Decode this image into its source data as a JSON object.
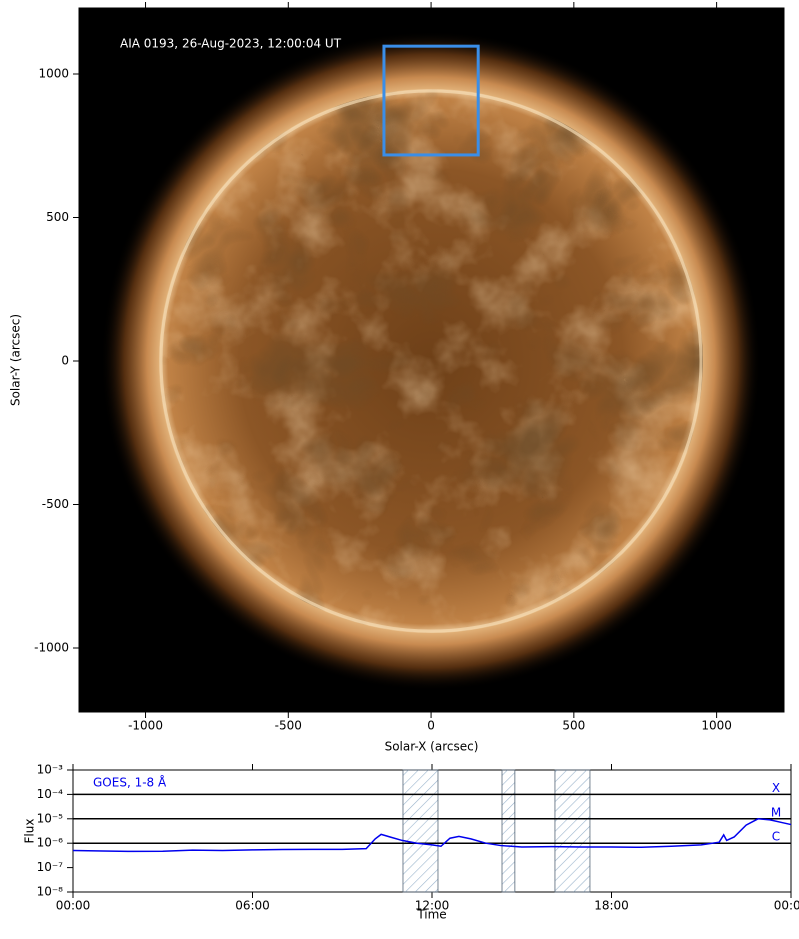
{
  "chart_data": [
    {
      "type": "image",
      "annotation": "AIA 0193, 26-Aug-2023, 12:00:04 UT",
      "xlabel": "Solar-X (arcsec)",
      "ylabel": "Solar-Y (arcsec)",
      "xlim": [
        -1233,
        1236
      ],
      "ylim": [
        -1223,
        1230
      ],
      "xticks": [
        -1000,
        -500,
        0,
        500,
        1000
      ],
      "yticks": [
        -1000,
        -500,
        0,
        500,
        1000
      ],
      "box": {
        "xlim": [
          -165,
          165
        ],
        "ylim": [
          718,
          1097
        ],
        "color": "#3a8ee8"
      }
    },
    {
      "type": "line",
      "xlabel": "Time",
      "ylabel": "Flux",
      "xlim": [
        0,
        24
      ],
      "ylim": [
        1e-08,
        0.001
      ],
      "ylog": true,
      "xticks": [
        {
          "value": 0,
          "label": "00:00"
        },
        {
          "value": 6,
          "label": "06:00"
        },
        {
          "value": 12,
          "label": "12:00"
        },
        {
          "value": 18,
          "label": "18:00"
        },
        {
          "value": 24,
          "label": "00:00"
        }
      ],
      "yticks": [
        {
          "value": 1e-08,
          "label": "10⁻⁸"
        },
        {
          "value": 1e-07,
          "label": "10⁻⁷"
        },
        {
          "value": 1e-06,
          "label": "10⁻⁶"
        },
        {
          "value": 1e-05,
          "label": "10⁻⁵"
        },
        {
          "value": 0.0001,
          "label": "10⁻⁴"
        },
        {
          "value": 0.001,
          "label": "10⁻³"
        }
      ],
      "flare_levels": [
        {
          "value": 0.0001,
          "label": "X"
        },
        {
          "value": 1e-05,
          "label": "M"
        },
        {
          "value": 1e-06,
          "label": "C"
        }
      ],
      "shaded_intervals": [
        [
          11.03,
          12.2
        ],
        [
          14.34,
          14.77
        ],
        [
          16.11,
          17.28
        ]
      ],
      "x": [
        0,
        1,
        2,
        3,
        4,
        5,
        6,
        7,
        8,
        9,
        9.8,
        10.1,
        10.3,
        10.6,
        11,
        11.5,
        12,
        12.3,
        12.6,
        12.9,
        13.3,
        13.8,
        14.3,
        15,
        16,
        17,
        18,
        19,
        20,
        21,
        21.6,
        21.75,
        21.85,
        22.1,
        22.5,
        22.9,
        23.3,
        23.7,
        24
      ],
      "series": [
        {
          "name": "GOES, 1-8 Å",
          "color": "#0000ee",
          "values": [
            5e-07,
            4.8e-07,
            4.6e-07,
            4.7e-07,
            5.2e-07,
            5e-07,
            5.3e-07,
            5.5e-07,
            5.6e-07,
            5.6e-07,
            6e-07,
            1.5e-06,
            2.3e-06,
            1.8e-06,
            1.3e-06,
            1e-06,
            8.5e-07,
            7.5e-07,
            1.6e-06,
            1.9e-06,
            1.5e-06,
            1e-06,
            8e-07,
            7e-07,
            7.2e-07,
            7e-07,
            7e-07,
            6.8e-07,
            7.5e-07,
            8.5e-07,
            1.1e-06,
            2.2e-06,
            1.3e-06,
            1.8e-06,
            5.5e-06,
            1e-05,
            9e-06,
            7e-06,
            5.8e-06
          ]
        }
      ]
    }
  ]
}
